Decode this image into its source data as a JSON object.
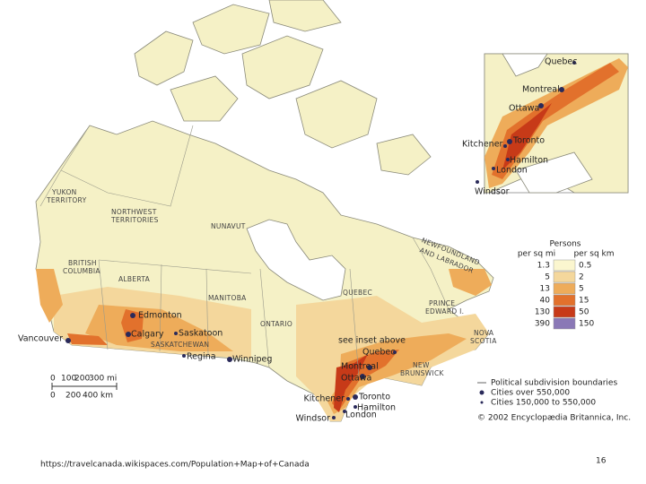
{
  "map": {
    "region_labels": [
      "YUKON",
      "TERRITORY",
      "NORTHWEST",
      "TERRITORIES",
      "NUNAVUT",
      "BRITISH",
      "COLUMBIA",
      "ALBERTA",
      "SASKATCHEWAN",
      "MANITOBA",
      "ONTARIO",
      "QUEBEC",
      "NEWFOUNDLAND",
      "AND LABRADOR",
      "PRINCE",
      "EDWARD I.",
      "NOVA",
      "SCOTIA",
      "NEW",
      "BRUNSWICK"
    ],
    "cities": [
      "Vancouver",
      "Edmonton",
      "Calgary",
      "Saskatoon",
      "Regina",
      "Winnipeg",
      "Quebec",
      "Montreal",
      "Ottawa",
      "Kitchener",
      "Toronto",
      "Hamilton",
      "London",
      "Windsor"
    ],
    "note": "see inset above",
    "inset_cities": [
      "Quebec",
      "Montreal",
      "Ottawa",
      "Toronto",
      "Kitchener",
      "Hamilton",
      "London",
      "Windsor"
    ]
  },
  "scale": {
    "miles": [
      0,
      100,
      200,
      "300 mi"
    ],
    "km": [
      0,
      200,
      "400 km"
    ]
  },
  "legend": {
    "title": "Persons",
    "col_mi": "per sq mi",
    "col_km": "per sq km",
    "rows": [
      {
        "per_sq_mi": 1.3,
        "per_sq_km": 0.5,
        "color": "#fbf6cf"
      },
      {
        "per_sq_mi": 5,
        "per_sq_km": 2,
        "color": "#f4d79c"
      },
      {
        "per_sq_mi": 13,
        "per_sq_km": 5,
        "color": "#eeac5a"
      },
      {
        "per_sq_mi": 40,
        "per_sq_km": 15,
        "color": "#e2712c"
      },
      {
        "per_sq_mi": 130,
        "per_sq_km": 50,
        "color": "#c73a18"
      },
      {
        "per_sq_mi": 390,
        "per_sq_km": 150,
        "color": "#8a78b6"
      }
    ]
  },
  "key": [
    "Political subdivision boundaries",
    "Cities over 550,000",
    "Cities 150,000 to 550,000"
  ],
  "credit": "© 2002 Encyclopædia Britannica, Inc.",
  "source": "https://travelcanada.wikispaces.com/Population+Map+of+Canada",
  "page_number": 16
}
